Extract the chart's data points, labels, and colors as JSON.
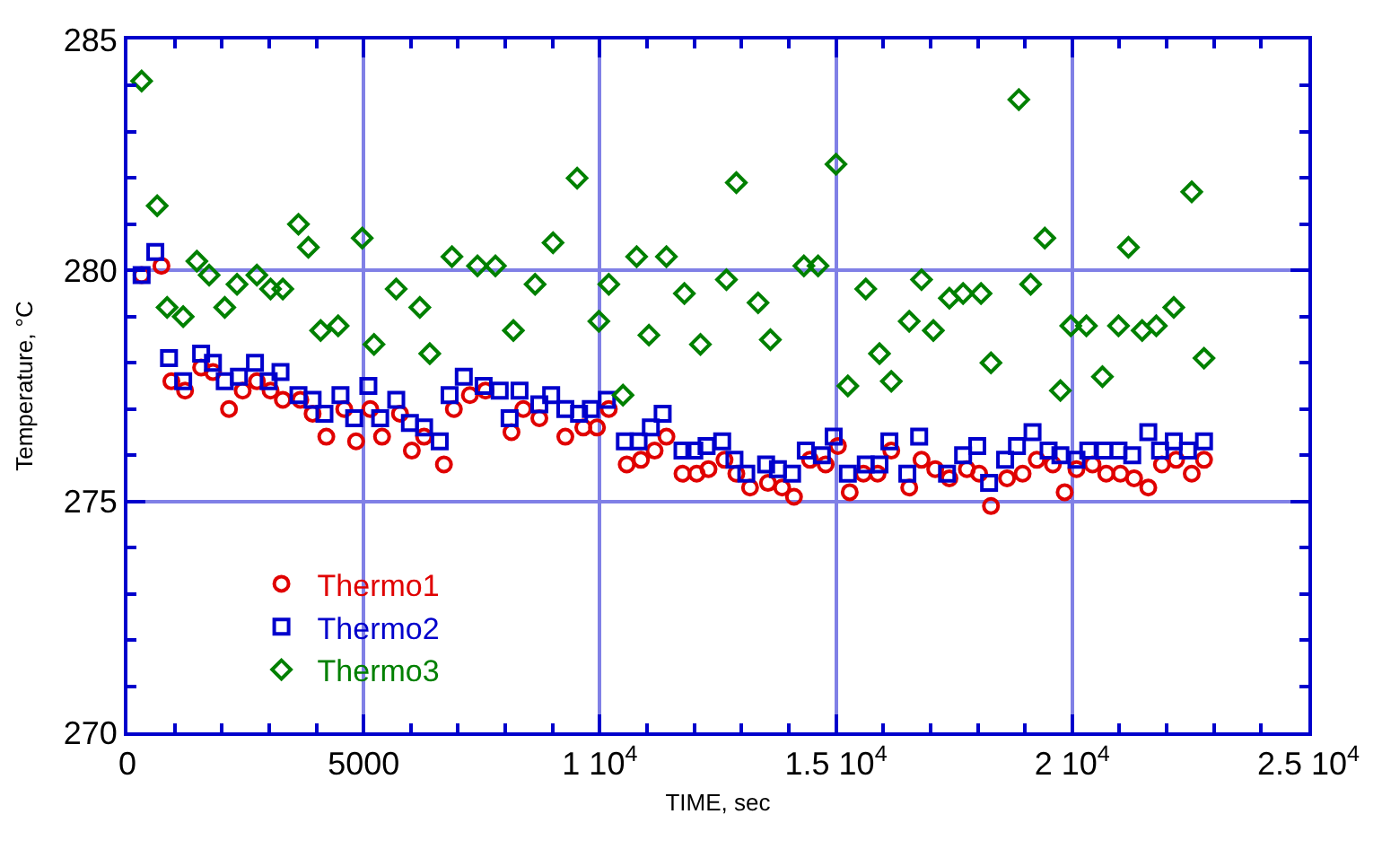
{
  "chart_data": {
    "type": "scatter",
    "xlabel": "TIME, sec",
    "ylabel": "Temperature, °C",
    "xlim": [
      0,
      25000
    ],
    "ylim": [
      270,
      285
    ],
    "xticks": [
      0,
      5000,
      {
        "value": 10000,
        "label": "1 10$^{4}$"
      },
      {
        "value": 15000,
        "label": "1.5 10$^{4}$"
      },
      {
        "value": 20000,
        "label": "2 10$^{4}$"
      },
      {
        "value": 25000,
        "label": "2.5 10$^{4}$"
      }
    ],
    "yticks": [
      270,
      275,
      280,
      285
    ],
    "grid": true,
    "legend": "bottom left",
    "series": [
      {
        "name": "Thermo1",
        "color": "#e00000",
        "marker": "circle",
        "x": [
          300,
          720,
          930,
          1220,
          1560,
          1810,
          2150,
          2440,
          2740,
          3030,
          3290,
          3660,
          3920,
          4210,
          4590,
          4840,
          5140,
          5390,
          5770,
          6020,
          6280,
          6700,
          6910,
          7250,
          7580,
          8130,
          8380,
          8720,
          9270,
          9650,
          9940,
          10190,
          10570,
          10870,
          11160,
          11410,
          11750,
          12050,
          12300,
          12640,
          12890,
          13180,
          13560,
          13860,
          14110,
          14450,
          14780,
          15040,
          15290,
          15580,
          15880,
          16170,
          16550,
          16810,
          17100,
          17400,
          17770,
          18030,
          18280,
          18620,
          18950,
          19250,
          19590,
          19840,
          20090,
          20430,
          20720,
          21020,
          21310,
          21610,
          21900,
          22200,
          22530,
          22790
        ],
        "values": [
          279.9,
          280.1,
          277.6,
          277.4,
          277.9,
          277.8,
          277.0,
          277.4,
          277.6,
          277.4,
          277.2,
          277.2,
          276.9,
          276.4,
          277.0,
          276.3,
          277.0,
          276.4,
          276.9,
          276.1,
          276.4,
          275.8,
          277.0,
          277.3,
          277.4,
          276.5,
          277.0,
          276.8,
          276.4,
          276.6,
          276.6,
          277.0,
          275.8,
          275.9,
          276.1,
          276.4,
          275.6,
          275.6,
          275.7,
          275.9,
          275.6,
          275.3,
          275.4,
          275.3,
          275.1,
          275.9,
          275.8,
          276.2,
          275.2,
          275.6,
          275.6,
          276.1,
          275.3,
          275.9,
          275.7,
          275.5,
          275.7,
          275.6,
          274.9,
          275.5,
          275.6,
          275.9,
          275.8,
          275.2,
          275.7,
          275.8,
          275.6,
          275.6,
          275.5,
          275.3,
          275.8,
          275.9,
          275.6,
          275.9
        ]
      },
      {
        "name": "Thermo2",
        "color": "#0000cc",
        "marker": "square",
        "x": [
          300,
          590,
          880,
          1180,
          1560,
          1810,
          2060,
          2360,
          2700,
          2990,
          3240,
          3620,
          3920,
          4170,
          4510,
          4800,
          5100,
          5350,
          5690,
          5980,
          6280,
          6610,
          6820,
          7120,
          7540,
          7880,
          8090,
          8300,
          8720,
          8970,
          9270,
          9560,
          9810,
          10150,
          10530,
          10820,
          11080,
          11330,
          11750,
          12000,
          12260,
          12590,
          12850,
          13100,
          13520,
          13770,
          14070,
          14360,
          14700,
          14950,
          15250,
          15630,
          15920,
          16130,
          16510,
          16760,
          17350,
          17690,
          17990,
          18240,
          18580,
          18830,
          19160,
          19500,
          19750,
          20090,
          20340,
          20680,
          20980,
          21270,
          21610,
          21860,
          22150,
          22450,
          22790
        ],
        "values": [
          279.9,
          280.4,
          278.1,
          277.6,
          278.2,
          278.0,
          277.6,
          277.7,
          278.0,
          277.6,
          277.8,
          277.3,
          277.2,
          276.9,
          277.3,
          276.8,
          277.5,
          276.8,
          277.2,
          276.7,
          276.6,
          276.3,
          277.3,
          277.7,
          277.5,
          277.4,
          276.8,
          277.4,
          277.1,
          277.3,
          277.0,
          276.9,
          277.0,
          277.2,
          276.3,
          276.3,
          276.6,
          276.9,
          276.1,
          276.1,
          276.2,
          276.3,
          275.9,
          275.6,
          275.8,
          275.7,
          275.6,
          276.1,
          276.0,
          276.4,
          275.6,
          275.8,
          275.8,
          276.3,
          275.6,
          276.4,
          275.6,
          276.0,
          276.2,
          275.4,
          275.9,
          276.2,
          276.5,
          276.1,
          276.0,
          275.9,
          276.1,
          276.1,
          276.1,
          276.0,
          276.5,
          276.1,
          276.3,
          276.1,
          276.3
        ]
      },
      {
        "name": "Thermo3",
        "color": "#008000",
        "marker": "diamond",
        "x": [
          300,
          630,
          840,
          1180,
          1470,
          1730,
          2060,
          2320,
          2740,
          3030,
          3290,
          3620,
          3830,
          4090,
          4460,
          4970,
          5220,
          5690,
          6190,
          6400,
          6870,
          7410,
          7790,
          8170,
          8630,
          9010,
          9520,
          9980,
          10190,
          10490,
          10780,
          11040,
          11410,
          11790,
          12130,
          12680,
          12890,
          13350,
          13610,
          14320,
          14620,
          15000,
          15250,
          15630,
          15920,
          16170,
          16550,
          16810,
          17060,
          17400,
          17690,
          18070,
          18280,
          18870,
          19120,
          19420,
          19750,
          19970,
          20300,
          20640,
          20980,
          21190,
          21480,
          21780,
          22150,
          22530,
          22790
        ],
        "values": [
          284.1,
          281.4,
          279.2,
          279.0,
          280.2,
          279.9,
          279.2,
          279.7,
          279.9,
          279.6,
          279.6,
          281.0,
          280.5,
          278.7,
          278.8,
          280.7,
          278.4,
          279.6,
          279.2,
          278.2,
          280.3,
          280.1,
          280.1,
          278.7,
          279.7,
          280.6,
          282.0,
          278.9,
          279.7,
          277.3,
          280.3,
          278.6,
          280.3,
          279.5,
          278.4,
          279.8,
          281.9,
          279.3,
          278.5,
          280.1,
          280.1,
          282.3,
          277.5,
          279.6,
          278.2,
          277.6,
          278.9,
          279.8,
          278.7,
          279.4,
          279.5,
          279.5,
          278.0,
          283.7,
          279.7,
          280.7,
          277.4,
          278.8,
          278.8,
          277.7,
          278.8,
          280.5,
          278.7,
          278.8,
          279.2,
          281.7,
          278.1
        ]
      }
    ]
  }
}
